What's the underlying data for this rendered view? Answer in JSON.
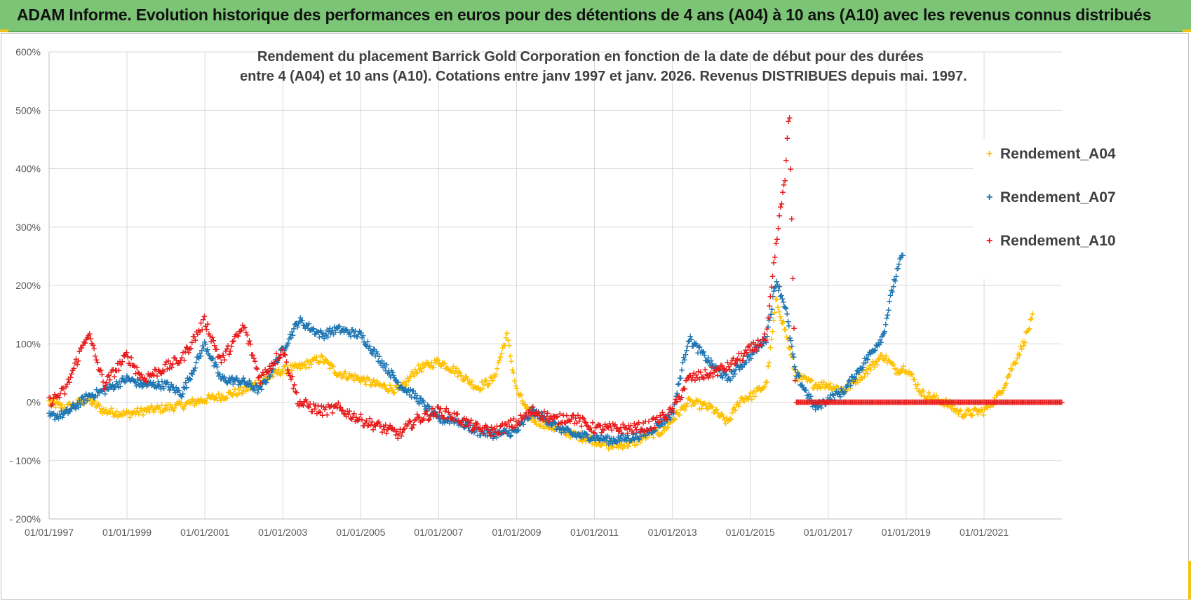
{
  "banner": {
    "title": "ADAM Informe. Evolution historique des performances en euros pour des détentions de 4 ans (A04) à 10 ans (A10) avec les revenus connus distribués"
  },
  "colors": {
    "banner_bg": "#7cc576",
    "A04": "#ffc000",
    "A07": "#1f77b4",
    "A10": "#e81a1a",
    "grid": "#d9d9d9",
    "axis_text": "#595959"
  },
  "chart_data": {
    "type": "scatter",
    "title_lines": [
      "Rendement du placement Barrick Gold Corporation en fonction de la date de début pour des durées",
      "entre 4 (A04) et 10 ans (A10).  Cotations entre janv 1997 et janv. 2026. Revenus DISTRIBUES depuis mai. 1997."
    ],
    "y_ticks": [
      600,
      500,
      400,
      300,
      200,
      100,
      0,
      -100,
      -200
    ],
    "y_tick_labels": [
      "600%",
      "500%",
      "400%",
      "300%",
      "200%",
      "100%",
      "0%",
      "- 100%",
      "- 200%"
    ],
    "ylim": [
      -200,
      600
    ],
    "x_tick_labels": [
      "01/01/1997",
      "01/01/1999",
      "01/01/2001",
      "01/01/2003",
      "01/01/2005",
      "01/01/2007",
      "01/01/2009",
      "01/01/2011",
      "01/01/2013",
      "01/01/2015",
      "01/01/2017",
      "01/01/2019",
      "01/01/2021"
    ],
    "xlim": [
      "1997-01-01",
      "2023-01-01"
    ],
    "legend_position": "top-right",
    "grid": true,
    "series": [
      {
        "name": "Rendement_A04",
        "color": "#ffc000",
        "points": [
          [
            "1997-01-01",
            0
          ],
          [
            "1997-06-01",
            -10
          ],
          [
            "1998-01-01",
            5
          ],
          [
            "1998-06-01",
            -15
          ],
          [
            "1999-01-01",
            -20
          ],
          [
            "1999-06-01",
            -15
          ],
          [
            "2000-01-01",
            -10
          ],
          [
            "2000-06-01",
            -5
          ],
          [
            "2001-01-01",
            5
          ],
          [
            "2001-06-01",
            10
          ],
          [
            "2002-01-01",
            20
          ],
          [
            "2002-06-01",
            35
          ],
          [
            "2003-01-01",
            55
          ],
          [
            "2003-06-01",
            60
          ],
          [
            "2004-01-01",
            75
          ],
          [
            "2004-06-01",
            50
          ],
          [
            "2005-01-01",
            40
          ],
          [
            "2005-06-01",
            30
          ],
          [
            "2006-01-01",
            20
          ],
          [
            "2006-06-01",
            55
          ],
          [
            "2007-01-01",
            70
          ],
          [
            "2007-06-01",
            55
          ],
          [
            "2008-01-01",
            25
          ],
          [
            "2008-06-01",
            40
          ],
          [
            "2008-10-01",
            115
          ],
          [
            "2009-01-01",
            20
          ],
          [
            "2009-06-01",
            -30
          ],
          [
            "2010-01-01",
            -45
          ],
          [
            "2010-06-01",
            -55
          ],
          [
            "2011-01-01",
            -65
          ],
          [
            "2011-06-01",
            -75
          ],
          [
            "2012-01-01",
            -70
          ],
          [
            "2012-06-01",
            -55
          ],
          [
            "2012-10-01",
            -50
          ],
          [
            "2013-01-01",
            -30
          ],
          [
            "2013-06-01",
            0
          ],
          [
            "2014-01-01",
            -10
          ],
          [
            "2014-06-01",
            -35
          ],
          [
            "2014-10-01",
            5
          ],
          [
            "2015-01-01",
            10
          ],
          [
            "2015-06-01",
            30
          ],
          [
            "2015-09-01",
            175
          ],
          [
            "2015-12-01",
            120
          ],
          [
            "2016-03-01",
            45
          ],
          [
            "2016-09-01",
            30
          ],
          [
            "2017-01-01",
            30
          ],
          [
            "2017-06-01",
            20
          ],
          [
            "2018-01-01",
            55
          ],
          [
            "2018-06-01",
            80
          ],
          [
            "2018-10-01",
            55
          ],
          [
            "2019-01-01",
            60
          ],
          [
            "2019-06-01",
            15
          ],
          [
            "2020-01-01",
            0
          ],
          [
            "2020-06-01",
            -20
          ],
          [
            "2021-01-01",
            -15
          ],
          [
            "2021-06-01",
            15
          ],
          [
            "2022-01-01",
            100
          ],
          [
            "2022-04-01",
            145
          ]
        ]
      },
      {
        "name": "Rendement_A07",
        "color": "#1f77b4",
        "points": [
          [
            "1997-01-01",
            -25
          ],
          [
            "1997-06-01",
            -20
          ],
          [
            "1998-01-01",
            10
          ],
          [
            "1998-06-01",
            20
          ],
          [
            "1999-01-01",
            40
          ],
          [
            "1999-06-01",
            30
          ],
          [
            "2000-01-01",
            30
          ],
          [
            "2000-06-01",
            15
          ],
          [
            "2001-01-01",
            100
          ],
          [
            "2001-06-01",
            40
          ],
          [
            "2002-01-01",
            35
          ],
          [
            "2002-06-01",
            20
          ],
          [
            "2003-01-01",
            90
          ],
          [
            "2003-06-01",
            140
          ],
          [
            "2004-01-01",
            115
          ],
          [
            "2004-06-01",
            125
          ],
          [
            "2005-01-01",
            115
          ],
          [
            "2005-06-01",
            80
          ],
          [
            "2006-01-01",
            30
          ],
          [
            "2006-06-01",
            10
          ],
          [
            "2007-01-01",
            -30
          ],
          [
            "2007-06-01",
            -30
          ],
          [
            "2008-01-01",
            -50
          ],
          [
            "2008-06-01",
            -55
          ],
          [
            "2009-01-01",
            -50
          ],
          [
            "2009-06-01",
            -15
          ],
          [
            "2010-01-01",
            -40
          ],
          [
            "2010-06-01",
            -55
          ],
          [
            "2011-01-01",
            -60
          ],
          [
            "2011-06-01",
            -65
          ],
          [
            "2012-01-01",
            -60
          ],
          [
            "2012-06-01",
            -50
          ],
          [
            "2013-01-01",
            -20
          ],
          [
            "2013-06-01",
            110
          ],
          [
            "2014-01-01",
            65
          ],
          [
            "2014-06-01",
            40
          ],
          [
            "2015-01-01",
            80
          ],
          [
            "2015-06-01",
            110
          ],
          [
            "2015-09-01",
            210
          ],
          [
            "2015-12-01",
            160
          ],
          [
            "2016-03-01",
            50
          ],
          [
            "2016-09-01",
            -10
          ],
          [
            "2017-01-01",
            5
          ],
          [
            "2017-06-01",
            20
          ],
          [
            "2018-01-01",
            75
          ],
          [
            "2018-06-01",
            115
          ],
          [
            "2018-09-01",
            200
          ],
          [
            "2018-12-01",
            255
          ]
        ]
      },
      {
        "name": "Rendement_A10",
        "color": "#e81a1a",
        "points": [
          [
            "1997-01-01",
            0
          ],
          [
            "1997-06-01",
            20
          ],
          [
            "1998-01-01",
            120
          ],
          [
            "1998-06-01",
            30
          ],
          [
            "1999-01-01",
            80
          ],
          [
            "1999-06-01",
            40
          ],
          [
            "2000-01-01",
            60
          ],
          [
            "2000-06-01",
            75
          ],
          [
            "2001-01-01",
            140
          ],
          [
            "2001-06-01",
            70
          ],
          [
            "2002-01-01",
            130
          ],
          [
            "2002-06-01",
            40
          ],
          [
            "2003-01-01",
            90
          ],
          [
            "2003-06-01",
            0
          ],
          [
            "2004-01-01",
            -15
          ],
          [
            "2004-06-01",
            -10
          ],
          [
            "2005-01-01",
            -30
          ],
          [
            "2005-06-01",
            -40
          ],
          [
            "2006-01-01",
            -55
          ],
          [
            "2006-06-01",
            -30
          ],
          [
            "2007-01-01",
            -15
          ],
          [
            "2007-06-01",
            -25
          ],
          [
            "2008-01-01",
            -45
          ],
          [
            "2008-06-01",
            -50
          ],
          [
            "2009-01-01",
            -35
          ],
          [
            "2009-06-01",
            -15
          ],
          [
            "2010-01-01",
            -30
          ],
          [
            "2010-06-01",
            -25
          ],
          [
            "2011-01-01",
            -45
          ],
          [
            "2011-06-01",
            -45
          ],
          [
            "2012-01-01",
            -45
          ],
          [
            "2012-06-01",
            -40
          ],
          [
            "2013-01-01",
            -15
          ],
          [
            "2013-06-01",
            40
          ],
          [
            "2014-01-01",
            50
          ],
          [
            "2014-06-01",
            60
          ],
          [
            "2015-01-01",
            90
          ],
          [
            "2015-06-01",
            110
          ],
          [
            "2015-09-01",
            270
          ],
          [
            "2015-12-01",
            400
          ],
          [
            "2016-01-01",
            510
          ],
          [
            "2016-03-01",
            0
          ],
          [
            "2022-12-31",
            0
          ]
        ]
      }
    ]
  }
}
